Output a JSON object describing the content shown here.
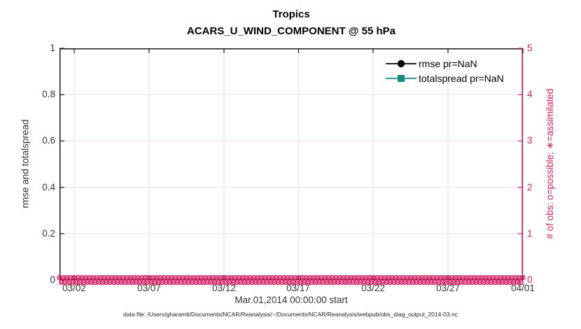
{
  "figure": {
    "title": "Tropics",
    "subtitle": "ACARS_U_WIND_COMPONENT @ 55 hPa",
    "xlabel": "Mar.01,2014 00:00:00 start",
    "footer": "data file: /Users/gharamti/Documents/NCAR/Reanalysis/~/Documents/NCAR/Reanalysis/webpub/obs_diag_output_2014-03.nc"
  },
  "axes": {
    "left": {
      "label": "rmse and totalspread",
      "ticks": [
        "1",
        "0.8",
        "0.6",
        "0.4",
        "0.2",
        "0"
      ],
      "color": "#333333"
    },
    "right": {
      "label": "# of obs: o=possible; ∗=assimilated",
      "ticks": [
        "5",
        "4",
        "3",
        "2",
        "1",
        "0"
      ],
      "color": "#d81b60"
    },
    "x": {
      "ticks": [
        "03/02",
        "03/07",
        "03/12",
        "03/17",
        "03/22",
        "03/27",
        "04/01"
      ]
    }
  },
  "legend": {
    "items": [
      {
        "label": "rmse pr=NaN",
        "color": "#000000",
        "marker": "circle-marker"
      },
      {
        "label": "totalspread pr=NaN",
        "color": "#148c82",
        "marker": "square-marker"
      }
    ]
  },
  "chart_data": {
    "type": "line",
    "title": "Tropics",
    "subtitle": "ACARS_U_WIND_COMPONENT @ 55 hPa",
    "xlabel": "Mar.01,2014 00:00:00 start",
    "ylabel_left": "rmse and totalspread",
    "ylabel_right": "# of obs: o=possible; ∗=assimilated",
    "x_start": "03/01/2014 00:00",
    "x_end": "04/01/2014 00:00",
    "x_tick_labels": [
      "03/02",
      "03/07",
      "03/12",
      "03/17",
      "03/22",
      "03/27",
      "04/01"
    ],
    "ylim_left": [
      0,
      1
    ],
    "ylim_right": [
      0,
      5
    ],
    "grid": true,
    "legend_position": "inside-top-right",
    "series": [
      {
        "name": "rmse pr=NaN",
        "axis": "left",
        "color": "#000000",
        "marker": "filled-circle",
        "values": "NaN (no curve plotted)"
      },
      {
        "name": "totalspread pr=NaN",
        "axis": "left",
        "color": "#148c82",
        "marker": "filled-square",
        "values": "NaN (no curve plotted)"
      },
      {
        "name": "# of obs possible (o)",
        "axis": "right",
        "color": "#d81b60",
        "marker": "o",
        "n_points": 125,
        "interval": "6h",
        "constant_value": 0
      },
      {
        "name": "# of obs assimilated (∗)",
        "axis": "right",
        "color": "#d81b60",
        "marker": "asterisk",
        "n_points": 124,
        "interval": "6h",
        "constant_value": 0
      }
    ],
    "colors": {
      "obs_marker": "#d81b60",
      "h_gridline": "#f7d7e3",
      "v_gridline": "#e2e2e2",
      "frame": "#1a1a1a",
      "right_axis": "#d81b60"
    }
  }
}
